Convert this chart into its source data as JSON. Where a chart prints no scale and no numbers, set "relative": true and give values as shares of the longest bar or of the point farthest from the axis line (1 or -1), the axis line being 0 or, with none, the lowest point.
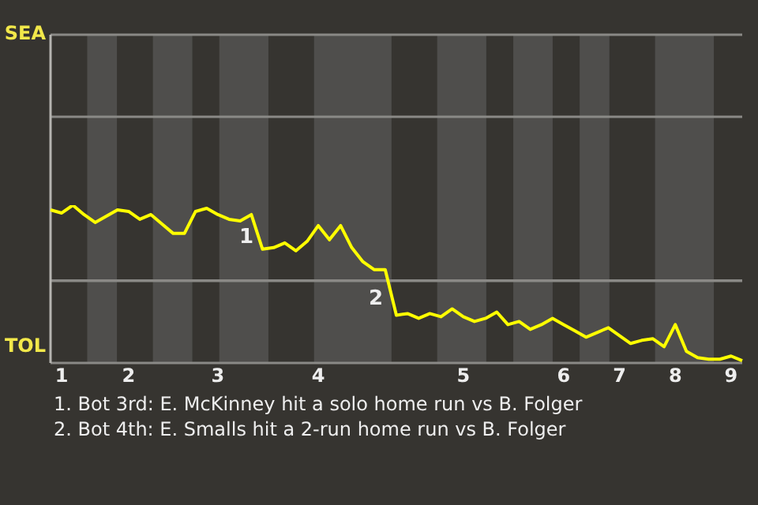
{
  "chart_data": {
    "type": "line",
    "relative": true,
    "categories": [
      null,
      "1",
      null,
      null,
      null,
      null,
      null,
      "2",
      null,
      null,
      null,
      null,
      null,
      null,
      null,
      "3",
      null,
      null,
      null,
      null,
      null,
      null,
      null,
      null,
      "4",
      null,
      null,
      null,
      null,
      null,
      null,
      null,
      null,
      null,
      null,
      null,
      null,
      "5",
      null,
      null,
      null,
      null,
      null,
      null,
      null,
      null,
      "6",
      null,
      null,
      null,
      null,
      "7",
      null,
      null,
      null,
      null,
      "8",
      null,
      null,
      null,
      null,
      "9",
      null
    ],
    "series": [
      {
        "color": "#ffff00",
        "values": [
          0.97,
          0.95,
          1,
          0.94,
          0.89,
          0.93,
          0.97,
          0.96,
          0.91,
          0.94,
          0.88,
          0.82,
          0.82,
          0.96,
          0.98,
          0.94,
          0.91,
          0.9,
          0.94,
          0.72,
          0.73,
          0.76,
          0.71,
          0.77,
          0.87,
          0.78,
          0.87,
          0.73,
          0.64,
          0.59,
          0.59,
          0.3,
          0.31,
          0.28,
          0.31,
          0.29,
          0.34,
          0.29,
          0.26,
          0.28,
          0.32,
          0.24,
          0.26,
          0.21,
          0.24,
          0.28,
          0.24,
          0.2,
          0.16,
          0.19,
          0.22,
          0.17,
          0.12,
          0.14,
          0.15,
          0.1,
          0.24,
          0.07,
          0.03,
          0.02,
          0.02,
          0.04,
          0.01
        ]
      }
    ],
    "annotations": [
      "SEA",
      "TOL",
      "1",
      "2",
      "1. Bot 3rd: E. McKinney hit a solo home run vs B. Folger",
      "2. Bot 4th: E. Smalls hit a 2-run home run vs B. Folger"
    ],
    "ref_lines": [
      {
        "axis": "y",
        "value": 0.52,
        "color": "#8a8986"
      }
    ],
    "legend": false,
    "marker": "none",
    "line_style": "solid"
  }
}
